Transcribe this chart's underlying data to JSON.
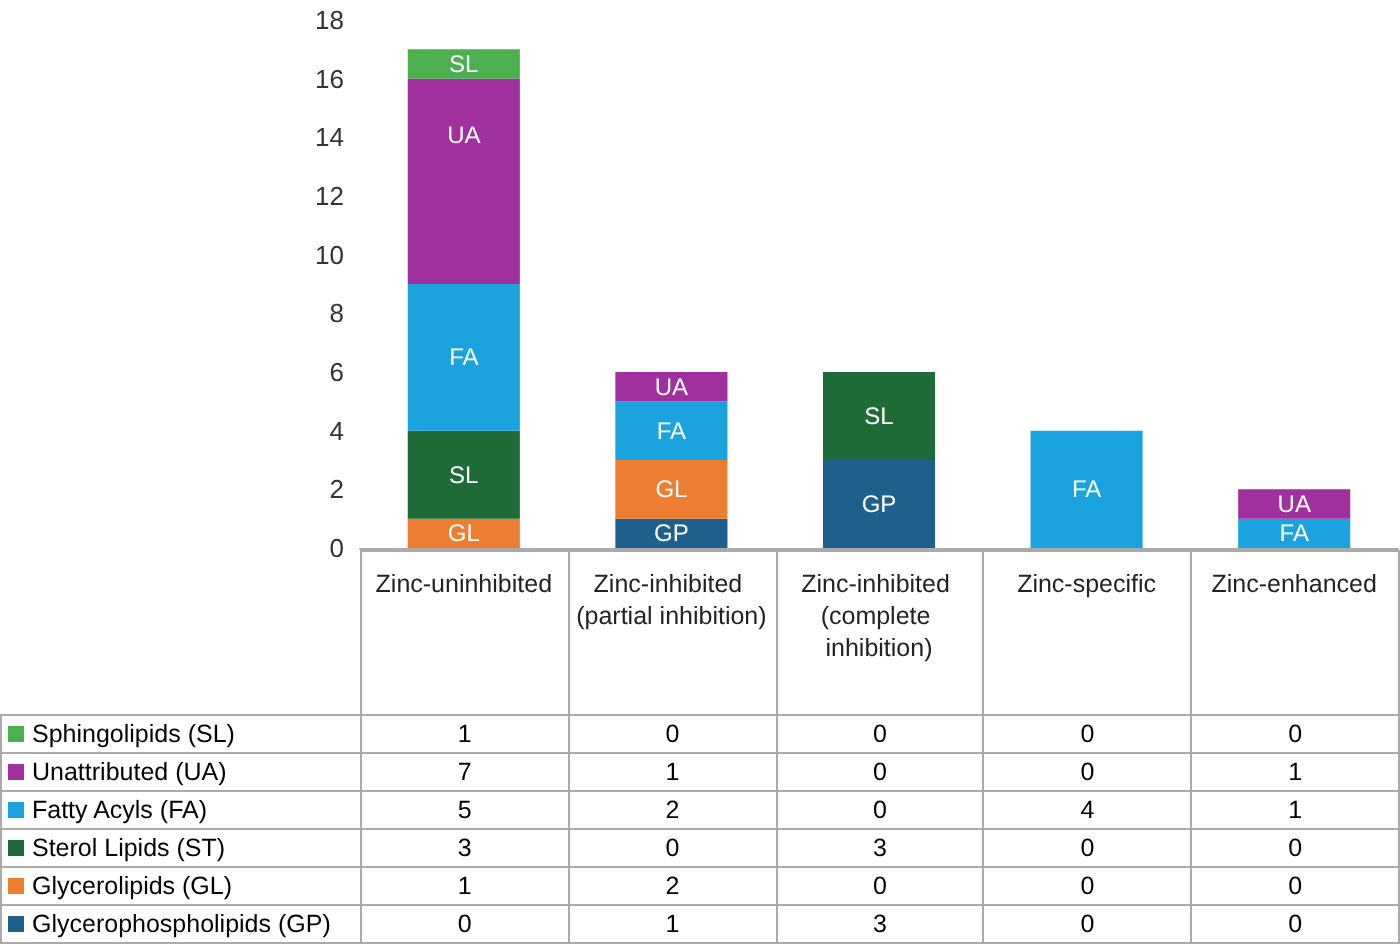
{
  "chart_data": {
    "type": "bar",
    "stacked": true,
    "categories": [
      "Zinc-uninhibited",
      "Zinc-inhibited (partial inhibition)",
      "Zinc-inhibited (complete inhibition)",
      "Zinc-specific",
      "Zinc-enhanced"
    ],
    "ylim": [
      0,
      18
    ],
    "yticks": [
      0,
      2,
      4,
      6,
      8,
      10,
      12,
      14,
      16,
      18
    ],
    "grid": false,
    "legend": "bottom left",
    "data_labels": true,
    "series": [
      {
        "name": "Glycerophospholipids (GP)",
        "color": "#1f5f8b",
        "values": [
          0,
          1,
          3,
          0,
          0
        ]
      },
      {
        "name": "Glycerolipids (GL)",
        "color": "#ed7d31",
        "values": [
          1,
          2,
          0,
          0,
          0
        ]
      },
      {
        "name": "Sterol Lipids (ST)",
        "color": "#1e6b38",
        "values": [
          3,
          0,
          3,
          0,
          0
        ]
      },
      {
        "name": "Fatty Acyls (FA)",
        "color": "#1aa3df",
        "values": [
          5,
          2,
          0,
          4,
          1
        ]
      },
      {
        "name": "Unattributed (UA)",
        "color": "#a0309e",
        "values": [
          7,
          1,
          0,
          0,
          1
        ]
      },
      {
        "name": "Sphingolipids (SL)",
        "color": "#4caf50",
        "values": [
          1,
          0,
          0,
          0,
          0
        ]
      }
    ],
    "annotations": [
      {
        "text": "GL",
        "x": "Zinc-uninhibited",
        "y": 1
      },
      {
        "text": "SL",
        "x": "Zinc-uninhibited",
        "y": 4
      },
      {
        "text": "FA",
        "x": "Zinc-uninhibited",
        "y": 9
      },
      {
        "text": "UA",
        "x": "Zinc-uninhibited",
        "y": 16
      },
      {
        "text": "SL",
        "x": "Zinc-uninhibited",
        "y": 17
      },
      {
        "text": "GP",
        "x": "Zinc-inhibited (partial inhibition)",
        "y": 1
      },
      {
        "text": "GL",
        "x": "Zinc-inhibited (partial inhibition)",
        "y": 3
      },
      {
        "text": "FA",
        "x": "Zinc-inhibited (partial inhibition)",
        "y": 5
      },
      {
        "text": "UA",
        "x": "Zinc-inhibited (partial inhibition)",
        "y": 6
      },
      {
        "text": "GP",
        "x": "Zinc-inhibited (complete inhibition)",
        "y": 3
      },
      {
        "text": "SL",
        "x": "Zinc-inhibited (complete inhibition)",
        "y": 6
      },
      {
        "text": "FA",
        "x": "Zinc-specific",
        "y": 4
      },
      {
        "text": "FA",
        "x": "Zinc-enhanced",
        "y": 1
      },
      {
        "text": "UA",
        "x": "Zinc-enhanced",
        "y": 2
      }
    ]
  }
}
